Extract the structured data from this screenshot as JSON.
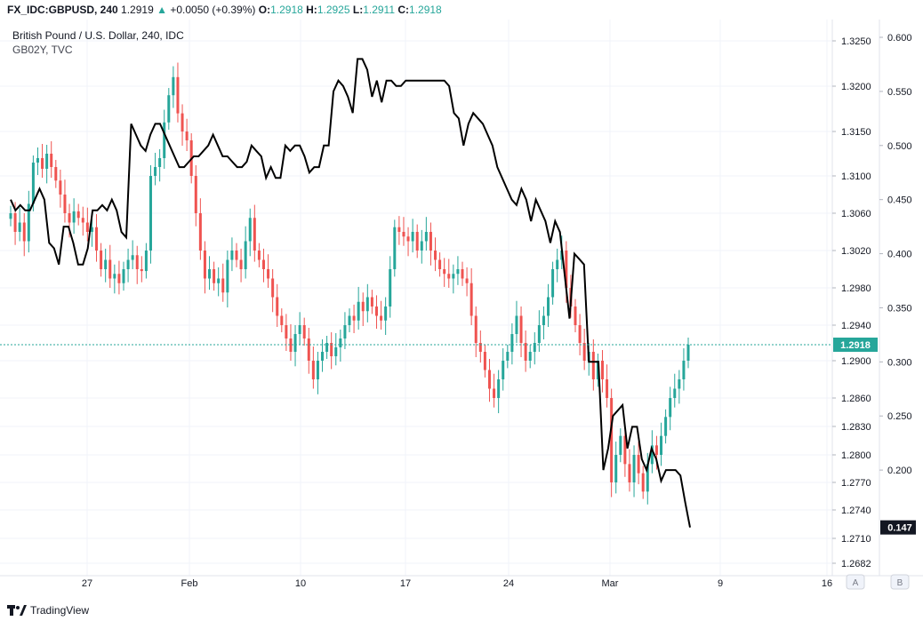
{
  "header": {
    "symbol": "FX_IDC:GBPUSD, 240",
    "last": "1.2919",
    "change_arrow": "▲",
    "change": "+0.0050 (+0.39%)",
    "o_label": "O:",
    "o_value": "1.2918",
    "h_label": "H:",
    "h_value": "1.2925",
    "l_label": "L:",
    "l_value": "1.2911",
    "c_label": "C:",
    "c_value": "1.2918"
  },
  "legend": {
    "line1": "British Pound / U.S. Dollar, 240, IDC",
    "line2": "GB02Y, TVC"
  },
  "footer": {
    "brand": "TradingView"
  },
  "scale_buttons": [
    "A",
    "B"
  ],
  "colors": {
    "up": "#26a69a",
    "down": "#ef5350",
    "line": "#000000",
    "grid": "#f0f3fa",
    "last_price": "#26a69a"
  },
  "chart_data": {
    "type": "candlestick",
    "x_ticks": [
      "27",
      "Feb",
      "10",
      "17",
      "24",
      "Mar",
      "9",
      "16"
    ],
    "price_axis": {
      "ticks": [
        "1.3250",
        "1.3200",
        "1.3150",
        "1.3100",
        "1.3060",
        "1.3020",
        "1.2980",
        "1.2940",
        "1.2900",
        "1.2860",
        "1.2830",
        "1.2800",
        "1.2770",
        "1.2740",
        "1.2710",
        "1.2682"
      ],
      "ylim": [
        1.2682,
        1.325
      ],
      "last_label": "1.2918"
    },
    "yield_axis": {
      "ticks": [
        "0.600",
        "0.550",
        "0.500",
        "0.450",
        "0.400",
        "0.350",
        "0.300",
        "0.250",
        "0.200",
        "0.150"
      ],
      "ylim": [
        0.15,
        0.6
      ],
      "last_label": "0.147"
    },
    "gbpusd_close": [
      1.306,
      1.304,
      1.305,
      1.303,
      1.307,
      1.3115,
      1.312,
      1.3108,
      1.3125,
      1.311,
      1.3095,
      1.308,
      1.306,
      1.305,
      1.3062,
      1.3055,
      1.305,
      1.304,
      1.3045,
      1.302,
      1.3,
      1.301,
      1.299,
      1.2995,
      1.2985,
      1.3,
      1.301,
      1.3015,
      1.3,
      1.2998,
      1.302,
      1.31,
      1.311,
      1.312,
      1.316,
      1.319,
      1.321,
      1.317,
      1.315,
      1.314,
      1.31,
      1.306,
      1.302,
      1.299,
      1.3,
      1.2985,
      1.299,
      1.2975,
      1.301,
      1.302,
      1.301,
      1.3,
      1.303,
      1.3055,
      1.302,
      1.301,
      1.3,
      1.299,
      1.297,
      1.295,
      1.294,
      1.2925,
      1.291,
      1.293,
      1.294,
      1.2925,
      1.29,
      1.288,
      1.29,
      1.291,
      1.292,
      1.2905,
      1.2915,
      1.2925,
      1.294,
      1.295,
      1.2945,
      1.2965,
      1.2955,
      1.297,
      1.296,
      1.295,
      1.2945,
      1.296,
      1.3,
      1.3045,
      1.304,
      1.3035,
      1.303,
      1.304,
      1.302,
      1.303,
      1.304,
      1.302,
      1.301,
      1.3,
      1.2995,
      1.299,
      1.2995,
      1.3,
      1.299,
      1.2985,
      1.295,
      1.292,
      1.291,
      1.289,
      1.287,
      1.286,
      1.288,
      1.29,
      1.291,
      1.293,
      1.295,
      1.292,
      1.29,
      1.291,
      1.292,
      1.294,
      1.295,
      1.297,
      1.3,
      1.301,
      1.302,
      1.298,
      1.296,
      1.294,
      1.292,
      1.29,
      1.291,
      1.288,
      1.29,
      1.288,
      1.286,
      1.277,
      1.28,
      1.282,
      1.279,
      1.277,
      1.28,
      1.278,
      1.276,
      1.279,
      1.281,
      1.28,
      1.282,
      1.284,
      1.286,
      1.287,
      1.288,
      1.29,
      1.2918
    ],
    "gb02y_yield": [
      0.45,
      0.44,
      0.445,
      0.44,
      0.44,
      0.45,
      0.46,
      0.45,
      0.41,
      0.405,
      0.39,
      0.425,
      0.425,
      0.41,
      0.39,
      0.39,
      0.405,
      0.44,
      0.44,
      0.445,
      0.44,
      0.45,
      0.44,
      0.42,
      0.415,
      0.52,
      0.51,
      0.5,
      0.495,
      0.51,
      0.52,
      0.52,
      0.51,
      0.5,
      0.49,
      0.48,
      0.48,
      0.485,
      0.49,
      0.49,
      0.495,
      0.5,
      0.51,
      0.5,
      0.49,
      0.49,
      0.485,
      0.48,
      0.48,
      0.485,
      0.5,
      0.495,
      0.49,
      0.47,
      0.48,
      0.47,
      0.47,
      0.5,
      0.495,
      0.5,
      0.5,
      0.49,
      0.475,
      0.48,
      0.48,
      0.5,
      0.5,
      0.55,
      0.56,
      0.555,
      0.545,
      0.53,
      0.58,
      0.58,
      0.57,
      0.545,
      0.56,
      0.54,
      0.56,
      0.56,
      0.555,
      0.555,
      0.56,
      0.56,
      0.56,
      0.56,
      0.56,
      0.56,
      0.56,
      0.56,
      0.56,
      0.555,
      0.53,
      0.525,
      0.5,
      0.52,
      0.53,
      0.525,
      0.52,
      0.51,
      0.5,
      0.48,
      0.47,
      0.46,
      0.45,
      0.445,
      0.46,
      0.45,
      0.43,
      0.45,
      0.44,
      0.43,
      0.41,
      0.43,
      0.42,
      0.38,
      0.34,
      0.4,
      0.395,
      0.39,
      0.3,
      0.3,
      0.3,
      0.2,
      0.22,
      0.25,
      0.255,
      0.26,
      0.22,
      0.24,
      0.24,
      0.21,
      0.2,
      0.22,
      0.21,
      0.19,
      0.2,
      0.2,
      0.2,
      0.195,
      0.17,
      0.147
    ],
    "last_price": 1.2918,
    "last_yield": 0.147
  }
}
